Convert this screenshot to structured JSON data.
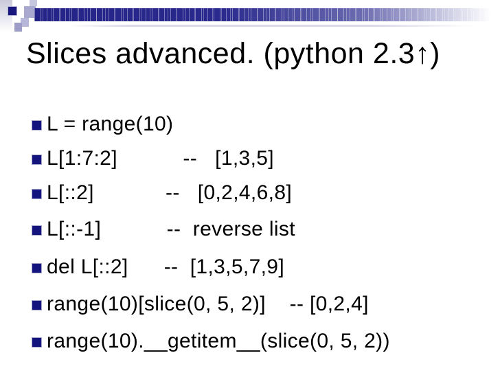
{
  "slide": {
    "title": "Slices advanced. (python 2.3↑)",
    "bullets": [
      "L = range(10)",
      "L[1:7:2]           --   [1,3,5]",
      "L[::2]            --   [0,2,4,6,8]",
      "L[::-1]           --  reverse list",
      "del L[::2]      --  [1,3,5,7,9]",
      "range(10)[slice(0, 5, 2)]    -- [0,2,4]",
      "range(10).__getitem__(slice(0, 5, 2))"
    ],
    "colors": {
      "bar_navy": "#2a2a8e",
      "bullet_navy": "#14147e",
      "accent_lavender": "#a9a9cf",
      "text": "#000000",
      "background": "#ffffff"
    }
  }
}
